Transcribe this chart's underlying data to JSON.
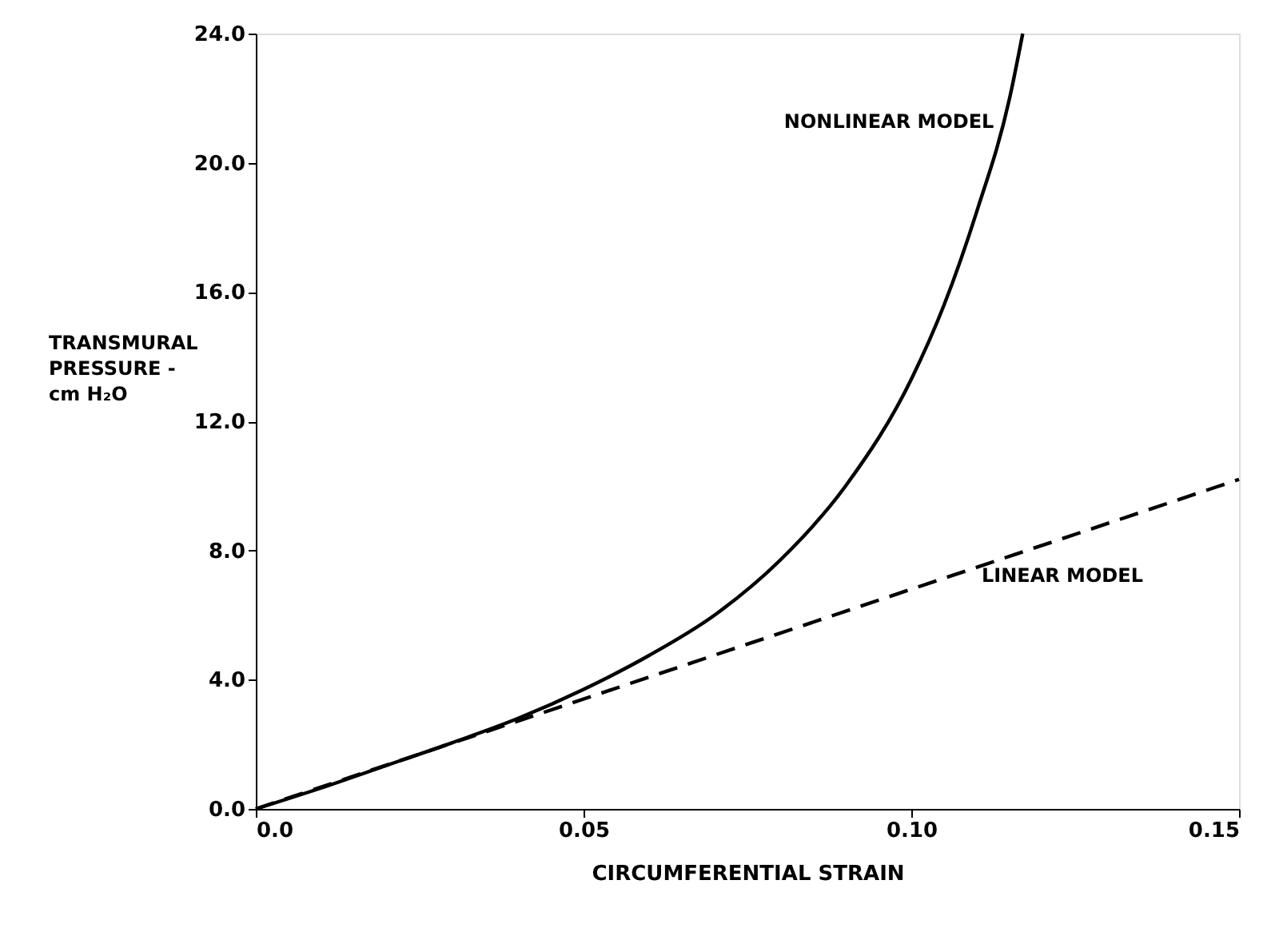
{
  "chart_data": {
    "type": "line",
    "xlabel": "CIRCUMFERENTIAL STRAIN",
    "ylabel": "TRANSMURAL\nPRESSURE -\ncm H₂O",
    "xlim": [
      0,
      0.15
    ],
    "ylim": [
      0,
      24
    ],
    "xticks": [
      {
        "value": 0,
        "label": "0.0"
      },
      0.05,
      {
        "value": 0.1,
        "label": "0.10"
      },
      0.15
    ],
    "yticks": [
      {
        "value": 0,
        "label": "0.0"
      },
      {
        "value": 4,
        "label": "4.0"
      },
      {
        "value": 8,
        "label": "8.0"
      },
      {
        "value": 12,
        "label": "12.0"
      },
      {
        "value": 16,
        "label": "16.0"
      },
      {
        "value": 20,
        "label": "20.0"
      },
      {
        "value": 24,
        "label": "24.0"
      }
    ],
    "grid": false,
    "marker": "none",
    "series": [
      {
        "name": "LINEAR MODEL",
        "color": "#000000",
        "line_style": "dashed",
        "x": [
          0,
          0.15
        ],
        "values": [
          0,
          10.2
        ]
      },
      {
        "name": "NONLINEAR MODEL",
        "color": "#000000",
        "line_style": "solid",
        "x": [
          0,
          0.01,
          0.02,
          0.03,
          0.04,
          0.05,
          0.06,
          0.07,
          0.08,
          0.09,
          0.1,
          0.105,
          0.11,
          0.115,
          0.117
        ],
        "values": [
          0,
          0.65,
          1.35,
          2.05,
          2.8,
          3.7,
          4.75,
          6.0,
          7.7,
          10.0,
          13.3,
          15.6,
          18.5,
          22.0,
          24.0
        ]
      }
    ]
  }
}
